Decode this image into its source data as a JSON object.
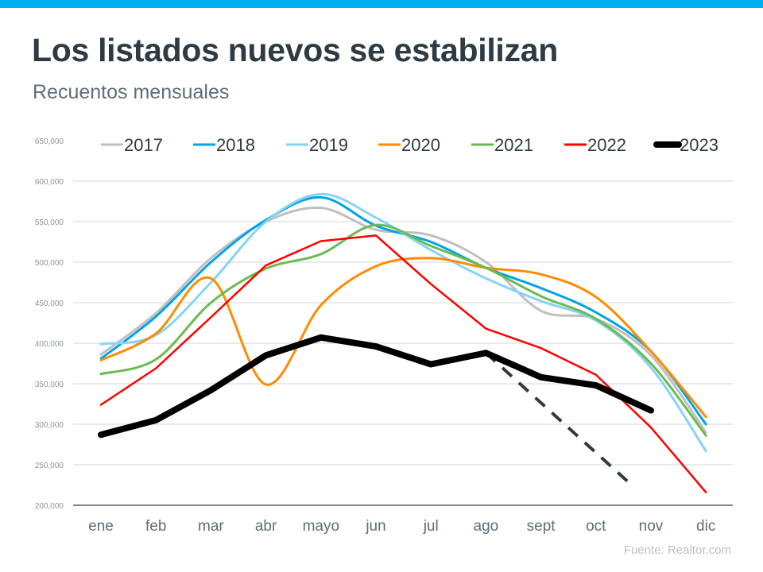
{
  "header": {
    "title": "Los listados nuevos se estabilizan",
    "subtitle": "Recuentos mensuales"
  },
  "source": "Fuente:  Realtor.com",
  "colors": {
    "accent_bar": "#00aeef",
    "grid": "#d0d5dc",
    "axis": "#333f48"
  },
  "chart_data": {
    "type": "line",
    "title": "Los listados nuevos se estabilizan",
    "subtitle": "Recuentos mensuales",
    "xlabel": "",
    "ylabel": "",
    "categories": [
      "ene",
      "feb",
      "mar",
      "abr",
      "mayo",
      "jun",
      "jul",
      "ago",
      "sept",
      "oct",
      "nov",
      "dic"
    ],
    "ylim": [
      200000,
      650000
    ],
    "yticks": [
      200000,
      250000,
      300000,
      350000,
      400000,
      450000,
      500000,
      550000,
      600000,
      650000
    ],
    "ytick_labels": [
      "200,000",
      "250,000",
      "300,000",
      "350,000",
      "400,000",
      "450,000",
      "500,000",
      "550,000",
      "600,000",
      "650,000"
    ],
    "grid": true,
    "legend_position": "top",
    "series": [
      {
        "name": "2017",
        "color": "#bfbfbf",
        "width": 3,
        "smooth": true,
        "values": [
          386000,
          437000,
          505000,
          550000,
          567000,
          540000,
          533000,
          500000,
          440000,
          430000,
          385000,
          290000
        ]
      },
      {
        "name": "2018",
        "color": "#00a3e6",
        "width": 3,
        "smooth": true,
        "values": [
          381000,
          433000,
          500000,
          552000,
          580000,
          545000,
          525000,
          493000,
          468000,
          438000,
          390000,
          300000
        ]
      },
      {
        "name": "2019",
        "color": "#87d3f5",
        "width": 3,
        "smooth": true,
        "values": [
          399000,
          410000,
          475000,
          550000,
          584000,
          555000,
          515000,
          480000,
          452000,
          428000,
          370000,
          267000
        ]
      },
      {
        "name": "2020",
        "color": "#ff8c00",
        "width": 3,
        "smooth": true,
        "values": [
          379000,
          412000,
          480000,
          349000,
          447000,
          495000,
          505000,
          493000,
          485000,
          457000,
          390000,
          309000
        ]
      },
      {
        "name": "2021",
        "color": "#6abb50",
        "width": 3,
        "smooth": true,
        "values": [
          362000,
          380000,
          450000,
          492000,
          510000,
          546000,
          520000,
          493000,
          458000,
          430000,
          375000,
          286000
        ]
      },
      {
        "name": "2022",
        "color": "#ff0000",
        "width": 2.5,
        "smooth": false,
        "values": [
          324000,
          369000,
          432000,
          496000,
          526000,
          533000,
          473000,
          418000,
          394000,
          361000,
          296000,
          216000
        ]
      },
      {
        "name": "2023",
        "color": "#000000",
        "width": 8,
        "smooth": false,
        "values": [
          287000,
          305000,
          342000,
          385000,
          407000,
          396000,
          374000,
          388000,
          358000,
          348000,
          317000,
          null
        ]
      }
    ],
    "projection": {
      "color": "#2f3b44",
      "points": [
        [
          7,
          388000
        ],
        [
          9.6,
          228000
        ]
      ]
    }
  }
}
